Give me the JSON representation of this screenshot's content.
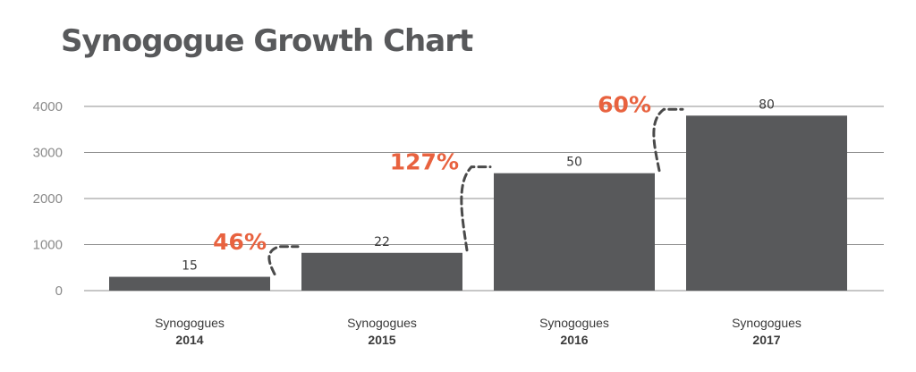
{
  "chart_data": {
    "type": "bar",
    "title": "Synogogue Growth Chart",
    "categories": [
      {
        "line1": "Synogogues",
        "line2": "2014"
      },
      {
        "line1": "Synogogues",
        "line2": "2015"
      },
      {
        "line1": "Synogogues",
        "line2": "2016"
      },
      {
        "line1": "Synogogues",
        "line2": "2017"
      }
    ],
    "values": [
      300,
      820,
      2550,
      3800
    ],
    "data_labels": [
      "15",
      "22",
      "50",
      "80"
    ],
    "growth_labels": [
      "46%",
      "127%",
      "60%"
    ],
    "yticks": [
      0,
      1000,
      2000,
      3000,
      4000
    ],
    "ytick_labels": [
      "0",
      "1000",
      "2000",
      "3000",
      "4000"
    ],
    "ylim": [
      0,
      4000
    ],
    "grid": true,
    "legend": "none",
    "colors": {
      "bar": "#58595b",
      "growth": "#e8623f",
      "grid": "#8f8f8f",
      "connector": "#4a4a4a"
    }
  }
}
